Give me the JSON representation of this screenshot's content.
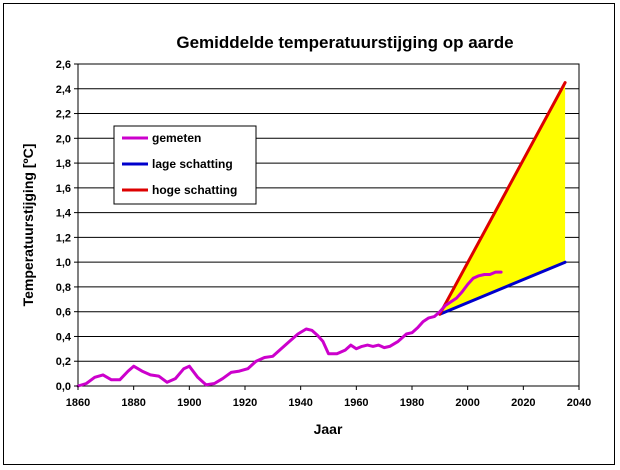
{
  "chart_data": {
    "type": "line",
    "title": "Gemiddelde temperatuurstijging op aarde",
    "xlabel": "Jaar",
    "ylabel": "Temperatuurstijging [ºC]",
    "xlim": [
      1860,
      2040
    ],
    "ylim": [
      0,
      2.6
    ],
    "x_ticks": [
      "1860",
      "1880",
      "1900",
      "1920",
      "1940",
      "1960",
      "1980",
      "2000",
      "2020",
      "2040"
    ],
    "y_ticks": [
      "0,0",
      "0,2",
      "0,4",
      "0,6",
      "0,8",
      "1,0",
      "1,2",
      "1,4",
      "1,6",
      "1,8",
      "2,0",
      "2,2",
      "2,4",
      "2,6"
    ],
    "grid": "horizontal",
    "legend_position": "upper-left",
    "shaded_band": {
      "between": [
        "lage schatting",
        "hoge schatting"
      ],
      "color": "#ffff00"
    },
    "series": [
      {
        "name": "gemeten",
        "color": "#cc00cc",
        "x": [
          1860,
          1863,
          1866,
          1869,
          1872,
          1875,
          1878,
          1880,
          1883,
          1886,
          1889,
          1892,
          1895,
          1898,
          1900,
          1903,
          1906,
          1909,
          1912,
          1915,
          1918,
          1921,
          1924,
          1927,
          1930,
          1933,
          1936,
          1939,
          1942,
          1944,
          1946,
          1948,
          1950,
          1953,
          1956,
          1958,
          1960,
          1962,
          1964,
          1966,
          1968,
          1970,
          1972,
          1975,
          1978,
          1980,
          1982,
          1984,
          1986,
          1988,
          1990,
          1992,
          1994,
          1996,
          1998,
          2000,
          2002,
          2004,
          2006,
          2008,
          2010,
          2012
        ],
        "y": [
          0.0,
          0.02,
          0.07,
          0.09,
          0.05,
          0.05,
          0.12,
          0.16,
          0.12,
          0.09,
          0.08,
          0.03,
          0.06,
          0.14,
          0.16,
          0.07,
          0.01,
          0.02,
          0.06,
          0.11,
          0.12,
          0.14,
          0.2,
          0.23,
          0.24,
          0.3,
          0.36,
          0.42,
          0.46,
          0.45,
          0.41,
          0.36,
          0.26,
          0.26,
          0.29,
          0.33,
          0.3,
          0.32,
          0.33,
          0.32,
          0.33,
          0.31,
          0.32,
          0.36,
          0.42,
          0.43,
          0.47,
          0.52,
          0.55,
          0.56,
          0.6,
          0.65,
          0.68,
          0.71,
          0.76,
          0.82,
          0.87,
          0.89,
          0.9,
          0.9,
          0.92,
          0.92
        ]
      },
      {
        "name": "lage schatting",
        "color": "#0000cc",
        "x": [
          1990,
          2035
        ],
        "y": [
          0.58,
          1.0
        ]
      },
      {
        "name": "hoge schatting",
        "color": "#dd0000",
        "x": [
          1990,
          2035
        ],
        "y": [
          0.58,
          2.45
        ]
      }
    ]
  }
}
